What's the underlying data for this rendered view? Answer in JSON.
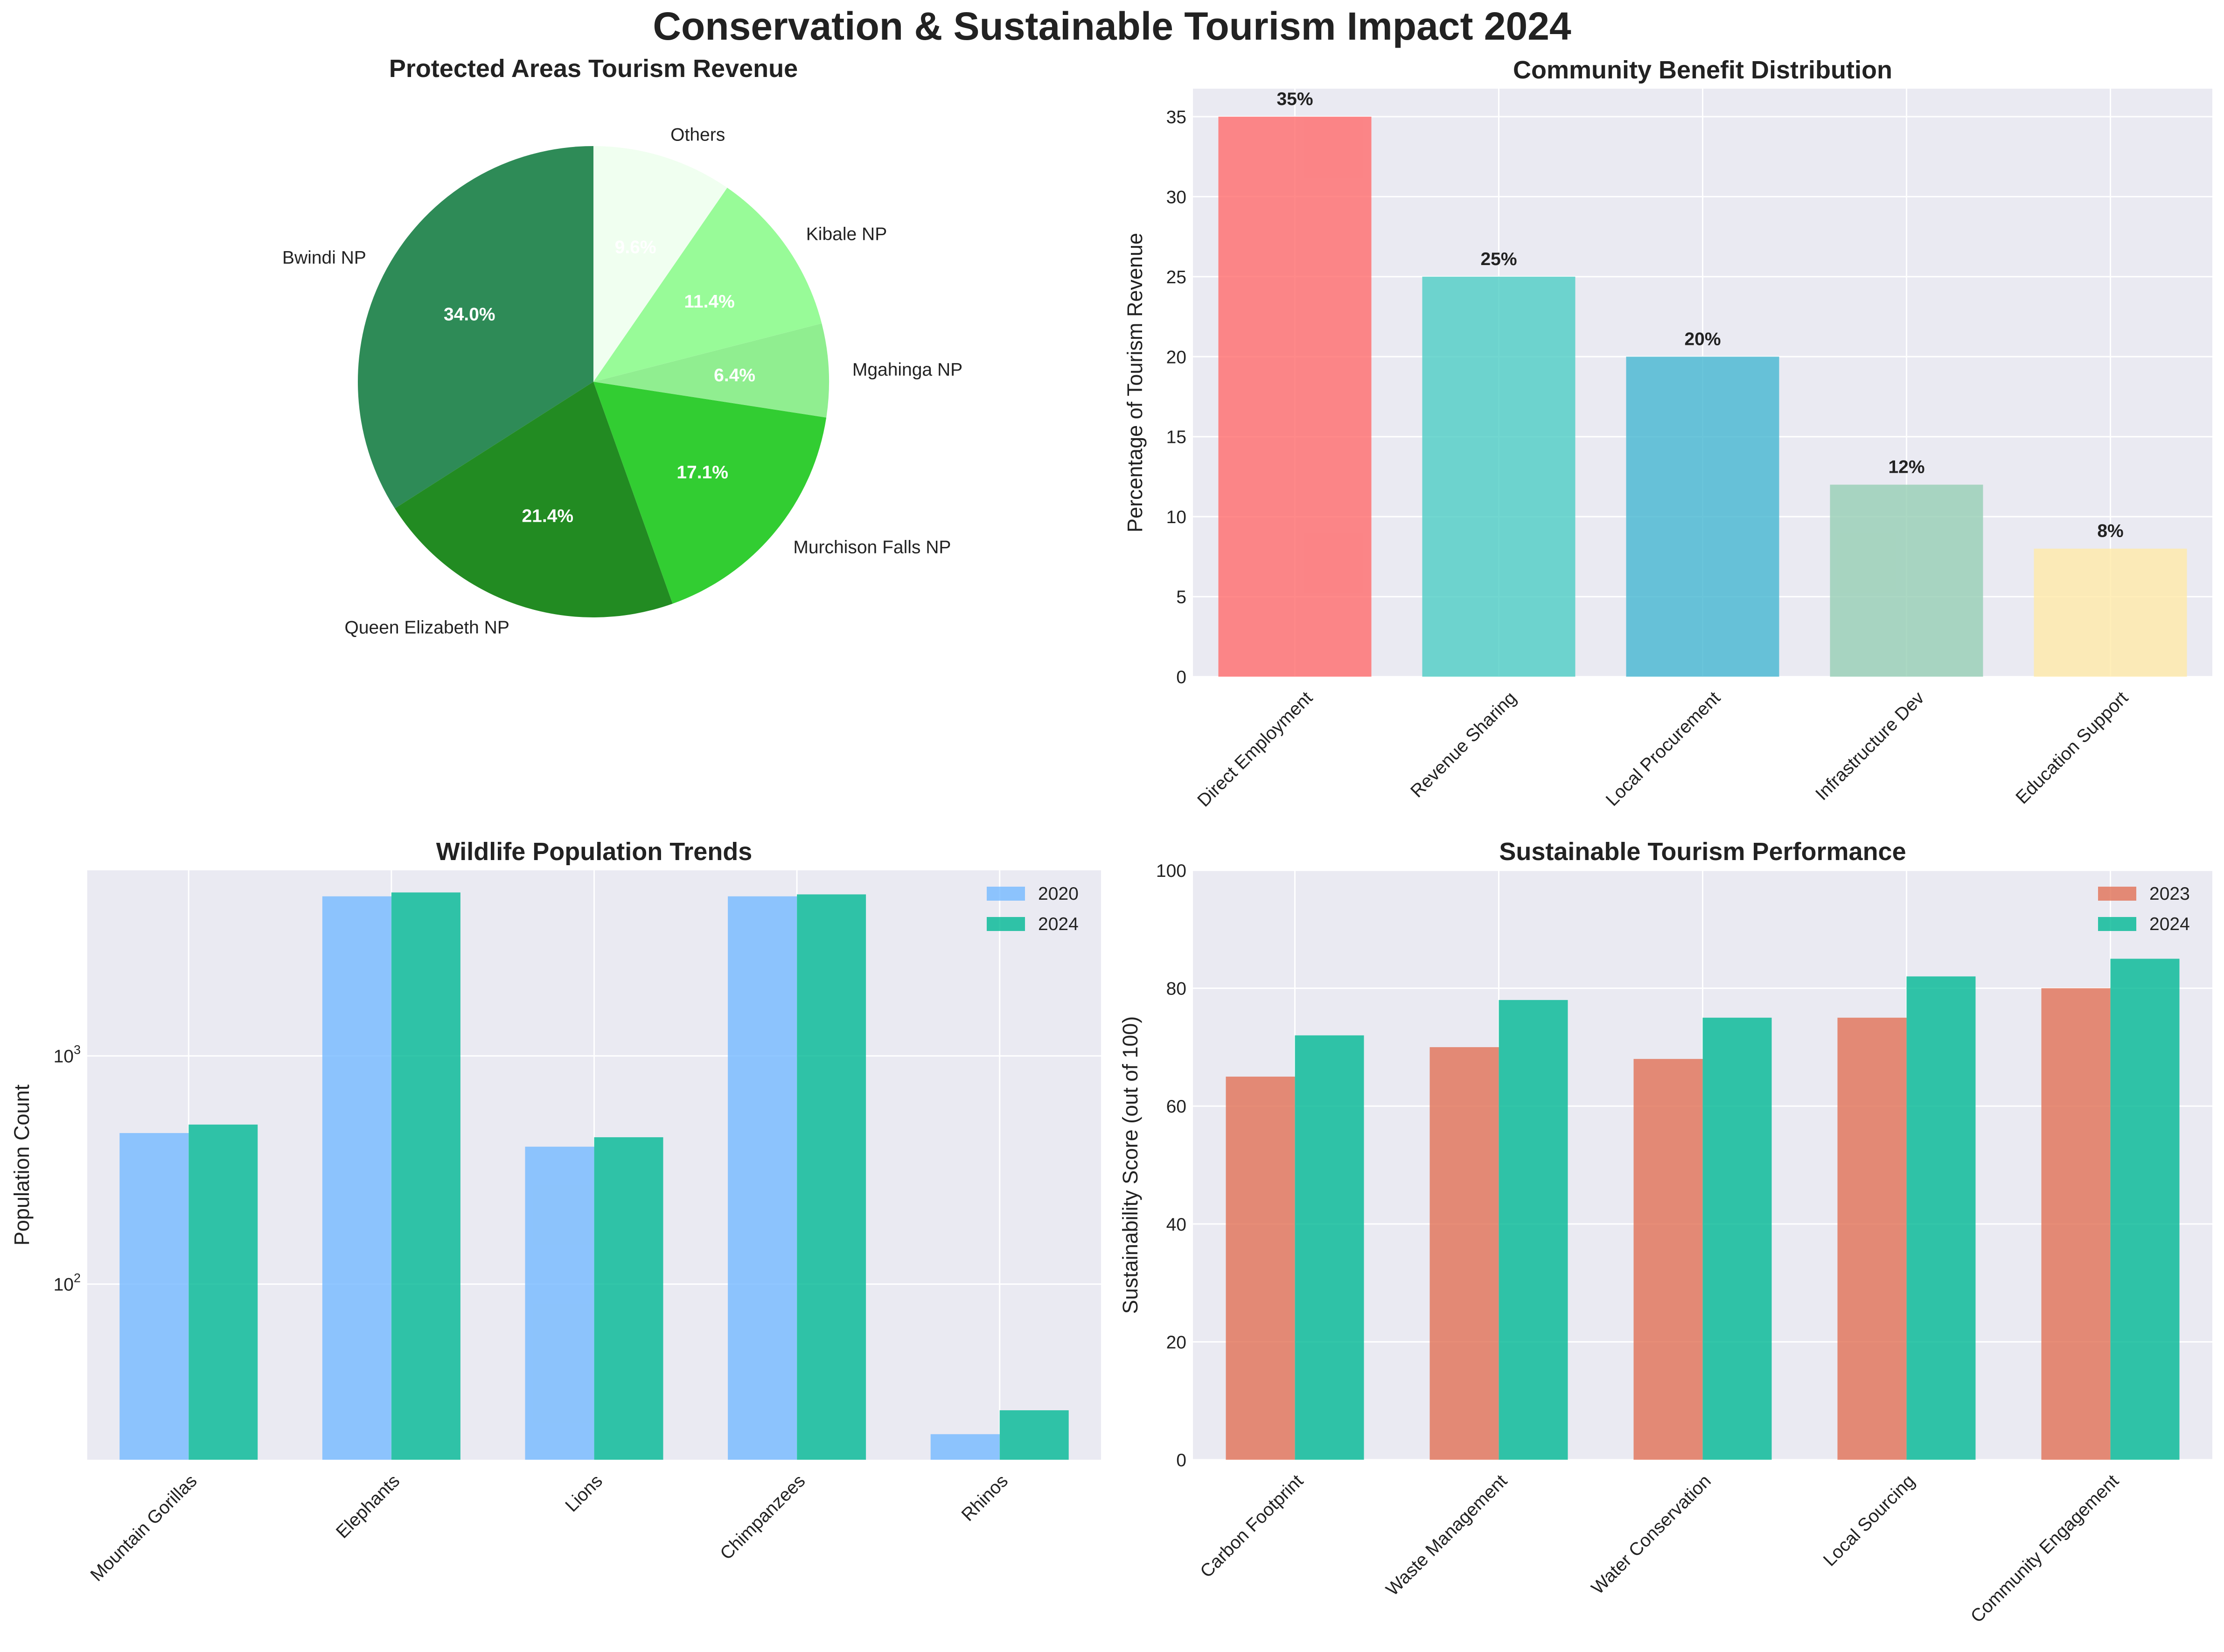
{
  "title": "Conservation & Sustainable Tourism Impact 2024",
  "chart_data": [
    {
      "type": "pie",
      "title": "Protected Areas Tourism Revenue",
      "labels": [
        "Bwindi NP",
        "Queen Elizabeth NP",
        "Murchison Falls NP",
        "Mgahinga NP",
        "Kibale NP",
        "Others"
      ],
      "values": [
        34.0,
        21.4,
        17.1,
        6.4,
        11.4,
        9.6
      ],
      "pct_labels": [
        "34.0%",
        "21.4%",
        "17.1%",
        "6.4%",
        "11.4%",
        "9.6%"
      ],
      "colors": [
        "#2e8b57",
        "#228b22",
        "#32cd32",
        "#90ee90",
        "#98fb98",
        "#f0fff0"
      ],
      "start_angle_deg": 90
    },
    {
      "type": "bar",
      "title": "Community Benefit Distribution",
      "categories": [
        "Direct Employment",
        "Revenue Sharing",
        "Local Procurement",
        "Infrastructure Dev",
        "Education Support"
      ],
      "values": [
        35,
        25,
        20,
        12,
        8
      ],
      "value_labels": [
        "35%",
        "25%",
        "20%",
        "12%",
        "8%"
      ],
      "colors": [
        "#ff6b6b",
        "#4ecdc4",
        "#45b7d1",
        "#96ceb4",
        "#ffeaa7"
      ],
      "ylabel": "Percentage of Tourism Revenue",
      "ylim": [
        0,
        36.75
      ],
      "yticks": [
        0,
        5,
        10,
        15,
        20,
        25,
        30,
        35
      ],
      "ytick_labels": [
        "0",
        "5",
        "10",
        "15",
        "20",
        "25",
        "30",
        "35"
      ]
    },
    {
      "type": "bar",
      "title": "Wildlife Population Trends",
      "yscale": "log",
      "categories": [
        "Mountain Gorillas",
        "Elephants",
        "Lions",
        "Chimpanzees",
        "Rhinos"
      ],
      "series": [
        {
          "name": "2020",
          "values": [
            459,
            5000,
            400,
            5000,
            22
          ],
          "color": "#74b9ff"
        },
        {
          "name": "2024",
          "values": [
            500,
            5200,
            440,
            5100,
            28
          ],
          "color": "#00b894"
        }
      ],
      "ylabel": "Population Count",
      "ylim": [
        17,
        6500
      ],
      "yticks": [
        100,
        1000
      ],
      "ytick_base": [
        "10",
        "10"
      ],
      "ytick_exp": [
        "2",
        "3"
      ],
      "legend": "top-right"
    },
    {
      "type": "bar",
      "title": "Sustainable Tourism Performance",
      "categories": [
        "Carbon Footprint",
        "Waste Management",
        "Water Conservation",
        "Local Sourcing",
        "Community Engagement"
      ],
      "series": [
        {
          "name": "2023",
          "values": [
            65,
            70,
            68,
            75,
            80
          ],
          "color": "#e17055"
        },
        {
          "name": "2024",
          "values": [
            72,
            78,
            75,
            82,
            85
          ],
          "color": "#00b894"
        }
      ],
      "ylabel": "Sustainability Score (out of 100)",
      "ylim": [
        0,
        100
      ],
      "yticks": [
        0,
        20,
        40,
        60,
        80,
        100
      ],
      "ytick_labels": [
        "0",
        "20",
        "40",
        "60",
        "80",
        "100"
      ],
      "legend": "top-right"
    }
  ]
}
